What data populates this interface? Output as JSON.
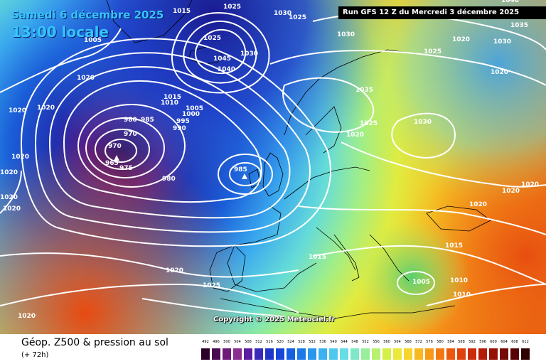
{
  "title": {
    "date": "Samedi 6 décembre 2025",
    "time": "13:00 locale"
  },
  "run": "Run GFS 12 Z du Mercredi 3 décembre 2025",
  "copyright": "Copyright © 2025 Meteociel.fr",
  "footer": {
    "title": "Géop. Z500 & pression au sol",
    "subtitle": "(+ 72h)"
  },
  "legend": {
    "values": [
      "492",
      "496",
      "500",
      "504",
      "508",
      "512",
      "516",
      "520",
      "524",
      "528",
      "532",
      "536",
      "540",
      "544",
      "548",
      "552",
      "556",
      "560",
      "564",
      "568",
      "572",
      "576",
      "580",
      "584",
      "588",
      "592",
      "596",
      "600",
      "604",
      "608",
      "612"
    ],
    "colors": [
      "#2b0028",
      "#4a0a50",
      "#6e1a78",
      "#8a2e90",
      "#5a1ea0",
      "#3a2ab8",
      "#2036c8",
      "#1846d8",
      "#1460e0",
      "#1a7ae8",
      "#2a96ee",
      "#3cb0f0",
      "#50c8ee",
      "#66dce4",
      "#7ee8c8",
      "#98ee9a",
      "#b8f070",
      "#d4f048",
      "#eae838",
      "#f6d42a",
      "#f8b820",
      "#f89a18",
      "#f47812",
      "#ec580e",
      "#e0400c",
      "#cc2c0a",
      "#b41c0a",
      "#961008",
      "#760806",
      "#560404",
      "#300000"
    ]
  },
  "isobar_labels": [
    {
      "text": "1015"
    },
    {
      "text": "1025"
    },
    {
      "text": "1030"
    },
    {
      "text": "1025"
    },
    {
      "text": "1025"
    },
    {
      "text": "1040"
    },
    {
      "text": "1005"
    },
    {
      "text": "1035"
    },
    {
      "text": "1030"
    },
    {
      "text": "1020"
    },
    {
      "text": "1030"
    },
    {
      "text": "1025"
    },
    {
      "text": "1030"
    },
    {
      "text": "1045"
    },
    {
      "text": "1040"
    },
    {
      "text": "1020"
    },
    {
      "text": "1020"
    },
    {
      "text": "1020"
    },
    {
      "text": "1015"
    },
    {
      "text": "1010"
    },
    {
      "text": "1005"
    },
    {
      "text": "1000"
    },
    {
      "text": "995"
    },
    {
      "text": "990"
    },
    {
      "text": "1035"
    },
    {
      "text": "980"
    },
    {
      "text": "985"
    },
    {
      "text": "970"
    },
    {
      "text": "970"
    },
    {
      "text": "965"
    },
    {
      "text": "975"
    },
    {
      "text": "980"
    },
    {
      "text": "985"
    },
    {
      "text": "1025"
    },
    {
      "text": "1030"
    },
    {
      "text": "1020"
    },
    {
      "text": "1020"
    },
    {
      "text": "1020"
    },
    {
      "text": "1020"
    },
    {
      "text": "1020"
    },
    {
      "text": "1020"
    },
    {
      "text": "1020"
    },
    {
      "text": "1020"
    },
    {
      "text": "1015"
    },
    {
      "text": "1015"
    },
    {
      "text": "1020"
    },
    {
      "text": "1025"
    },
    {
      "text": "1005"
    },
    {
      "text": "1010"
    },
    {
      "text": "1010"
    },
    {
      "text": "1020"
    },
    {
      "text": "1020"
    }
  ]
}
